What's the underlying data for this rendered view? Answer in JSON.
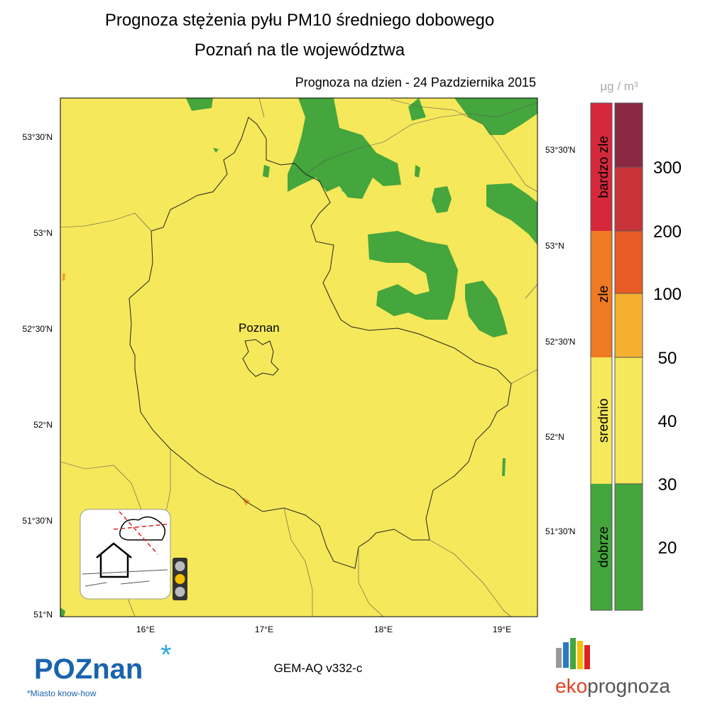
{
  "header": {
    "title": "Prognoza stężenia pyłu PM10 średniego dobowego",
    "subtitle": "Poznań na tle województwa",
    "date_line": "Prognoza na dzien -  24 Pazdziernika 2015"
  },
  "map": {
    "city_label": "Poznan",
    "left_lat_labels": [
      "53°30'N",
      "53°N",
      "52°30'N",
      "52°N",
      "51°30'N",
      "51°N"
    ],
    "right_lat_labels": [
      "53°30'N",
      "53°N",
      "52°30'N",
      "52°N",
      "51°30'N"
    ],
    "lon_labels": [
      "16°E",
      "17°E",
      "18°E",
      "19°E"
    ]
  },
  "legend": {
    "unit": "µg / m³",
    "categories": [
      "bardzo zle",
      "zle",
      "srednio",
      "dobrze"
    ],
    "thresholds": [
      300,
      200,
      100,
      50,
      40,
      30,
      20
    ]
  },
  "footer": {
    "model": "GEM-AQ v332-c",
    "logo_left": "POZnan",
    "tagline": "*Miasto know-how",
    "logo_right_a": "eko",
    "logo_right_b": "prognoza"
  }
}
